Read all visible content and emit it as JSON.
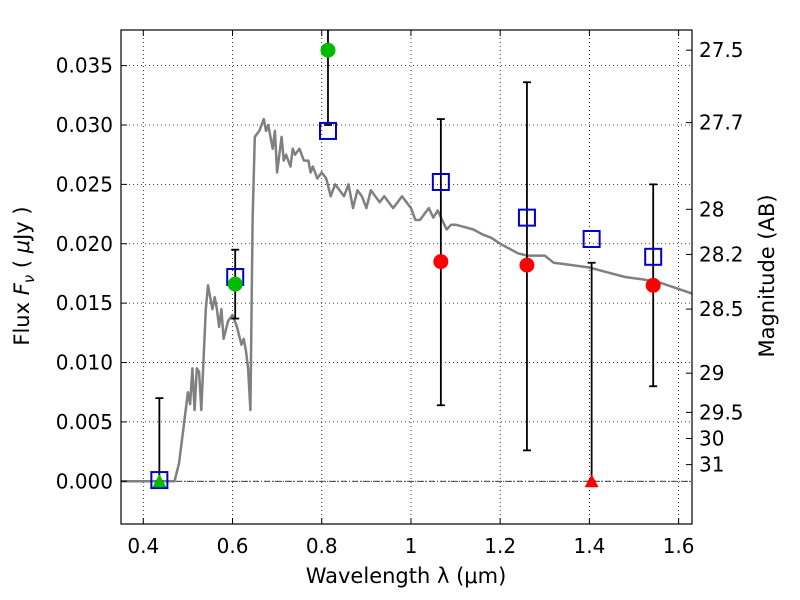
{
  "chart_data": {
    "type": "scatter",
    "xlabel": "Wavelength  λ (μm)",
    "ylabel": "Flux  F_ν  ( μJy )",
    "y2label": "Magnitude (AB)",
    "xlim": [
      0.35,
      1.63
    ],
    "ylim": [
      -0.0036,
      0.038
    ],
    "grid": true,
    "x_ticks": [
      0.4,
      0.6,
      0.8,
      1.0,
      1.2,
      1.4,
      1.6
    ],
    "x_tick_labels": [
      "0.4",
      "0.6",
      "0.8",
      "1",
      "1.2",
      "1.4",
      "1.6"
    ],
    "y_ticks": [
      0.0,
      0.005,
      0.01,
      0.015,
      0.02,
      0.025,
      0.03,
      0.035
    ],
    "y_tick_labels": [
      "0.000",
      "0.005",
      "0.010",
      "0.015",
      "0.020",
      "0.025",
      "0.030",
      "0.035"
    ],
    "y2_ticks": [
      {
        "label": "27.5",
        "flux": 0.0363
      },
      {
        "label": "27.7",
        "flux": 0.0302
      },
      {
        "label": "28",
        "flux": 0.0229
      },
      {
        "label": "28.2",
        "flux": 0.0191
      },
      {
        "label": "28.5",
        "flux": 0.0145
      },
      {
        "label": "29",
        "flux": 0.0091
      },
      {
        "label": "29.5",
        "flux": 0.0058
      },
      {
        "label": "30",
        "flux": 0.0036
      },
      {
        "label": "31",
        "flux": 0.0014
      }
    ],
    "model_spectrum": {
      "color": "#808080",
      "x": [
        0.35,
        0.46,
        0.47,
        0.48,
        0.49,
        0.5,
        0.505,
        0.51,
        0.515,
        0.52,
        0.525,
        0.53,
        0.54,
        0.545,
        0.55,
        0.555,
        0.56,
        0.565,
        0.57,
        0.575,
        0.58,
        0.59,
        0.6,
        0.61,
        0.62,
        0.625,
        0.63,
        0.635,
        0.64,
        0.645,
        0.65,
        0.66,
        0.67,
        0.675,
        0.68,
        0.69,
        0.695,
        0.7,
        0.71,
        0.715,
        0.72,
        0.73,
        0.735,
        0.74,
        0.75,
        0.76,
        0.77,
        0.775,
        0.78,
        0.79,
        0.8,
        0.81,
        0.82,
        0.83,
        0.84,
        0.85,
        0.86,
        0.87,
        0.88,
        0.89,
        0.9,
        0.91,
        0.92,
        0.93,
        0.94,
        0.95,
        0.96,
        0.97,
        0.98,
        1.0,
        1.01,
        1.02,
        1.04,
        1.05,
        1.06,
        1.08,
        1.09,
        1.1,
        1.12,
        1.14,
        1.16,
        1.18,
        1.2,
        1.24,
        1.26,
        1.3,
        1.32,
        1.34,
        1.4,
        1.44,
        1.48,
        1.52,
        1.56,
        1.6,
        1.63
      ],
      "y": [
        0.0,
        0.0,
        0.0,
        0.0015,
        0.0045,
        0.0075,
        0.0065,
        0.0095,
        0.006,
        0.0095,
        0.0092,
        0.006,
        0.0145,
        0.0165,
        0.0155,
        0.0145,
        0.0155,
        0.0145,
        0.013,
        0.0145,
        0.012,
        0.0135,
        0.014,
        0.013,
        0.0115,
        0.012,
        0.011,
        0.0095,
        0.006,
        0.022,
        0.029,
        0.0295,
        0.0305,
        0.0295,
        0.03,
        0.028,
        0.0295,
        0.026,
        0.029,
        0.027,
        0.0275,
        0.0265,
        0.028,
        0.0275,
        0.028,
        0.027,
        0.027,
        0.026,
        0.0265,
        0.0255,
        0.026,
        0.0255,
        0.024,
        0.025,
        0.0245,
        0.024,
        0.025,
        0.023,
        0.0245,
        0.024,
        0.023,
        0.0245,
        0.024,
        0.0235,
        0.024,
        0.0235,
        0.023,
        0.0235,
        0.024,
        0.023,
        0.022,
        0.022,
        0.023,
        0.0222,
        0.0228,
        0.0212,
        0.0216,
        0.0216,
        0.0214,
        0.0212,
        0.0208,
        0.0205,
        0.02,
        0.0192,
        0.019,
        0.019,
        0.0184,
        0.0183,
        0.018,
        0.0176,
        0.0172,
        0.017,
        0.0167,
        0.0162,
        0.0158
      ]
    },
    "series": [
      {
        "name": "",
        "marker": "square-open",
        "color": "#0000cc",
        "points": [
          {
            "x": 0.436,
            "y": 0.0001
          },
          {
            "x": 0.606,
            "y": 0.0172
          },
          {
            "x": 0.814,
            "y": 0.0295
          },
          {
            "x": 1.067,
            "y": 0.0252
          },
          {
            "x": 1.26,
            "y": 0.0222
          },
          {
            "x": 1.405,
            "y": 0.0204
          },
          {
            "x": 1.543,
            "y": 0.0189
          }
        ]
      },
      {
        "name": "",
        "marker": "circle",
        "color": "#00bb00",
        "points": [
          {
            "x": 0.606,
            "y": 0.0166,
            "err_low": 0.0137,
            "err_high": 0.0195
          },
          {
            "x": 0.814,
            "y": 0.0363,
            "err_low": 0.03,
            "err_high": 0.0385
          }
        ]
      },
      {
        "name": "",
        "marker": "triangle",
        "color": "#00bb00",
        "points": [
          {
            "x": 0.436,
            "y": 0.0,
            "err_low": 0.0,
            "err_high": 0.007
          }
        ]
      },
      {
        "name": "",
        "marker": "circle",
        "color": "#ff0000",
        "points": [
          {
            "x": 1.067,
            "y": 0.0185,
            "err_low": 0.0064,
            "err_high": 0.0305
          },
          {
            "x": 1.26,
            "y": 0.0182,
            "err_low": 0.0026,
            "err_high": 0.0336
          },
          {
            "x": 1.543,
            "y": 0.0165,
            "err_low": 0.008,
            "err_high": 0.025
          }
        ]
      },
      {
        "name": "",
        "marker": "triangle",
        "color": "#ff0000",
        "points": [
          {
            "x": 1.405,
            "y": 0.0,
            "err_low": 0.0,
            "err_high": 0.0184
          }
        ]
      }
    ]
  }
}
